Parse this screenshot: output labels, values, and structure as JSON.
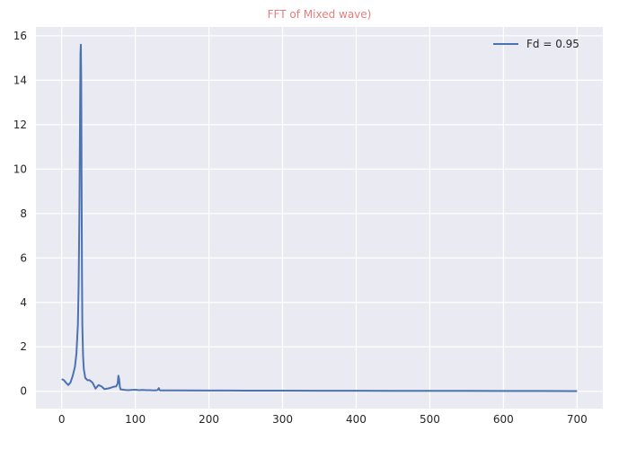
{
  "chart_data": {
    "type": "line",
    "title": "FFT of Mixed wave)",
    "title_color": "#e77c7c",
    "xlabel": "",
    "ylabel": "",
    "xlim": [
      -35,
      735
    ],
    "ylim": [
      -0.78,
      16.4
    ],
    "xticks": [
      0,
      100,
      200,
      300,
      400,
      500,
      600,
      700
    ],
    "yticks": [
      0,
      2,
      4,
      6,
      8,
      10,
      12,
      14,
      16
    ],
    "grid": true,
    "background": "#eaeaf2",
    "legend": {
      "placement": "top-right",
      "entries": [
        "Fd = 0.95"
      ]
    },
    "series": [
      {
        "name": "Fd = 0.95",
        "color": "#4c72b0",
        "x": [
          0,
          3,
          6,
          9,
          12,
          15,
          18,
          20,
          22,
          23,
          24,
          25,
          25.5,
          26,
          26.5,
          27,
          27.5,
          28,
          29,
          30,
          32,
          35,
          38,
          42,
          46,
          50,
          54,
          58,
          62,
          66,
          70,
          74,
          76,
          77,
          78,
          79,
          80,
          82,
          86,
          90,
          95,
          100,
          105,
          110,
          115,
          120,
          125,
          130,
          132,
          133,
          134,
          140,
          150,
          200,
          250,
          300,
          350,
          400,
          450,
          500,
          550,
          600,
          650,
          700
        ],
        "y": [
          0.55,
          0.5,
          0.38,
          0.28,
          0.4,
          0.7,
          1.1,
          1.7,
          3.0,
          4.8,
          8.0,
          12.8,
          15.2,
          15.6,
          14.0,
          9.5,
          5.5,
          3.0,
          1.6,
          1.0,
          0.6,
          0.5,
          0.5,
          0.38,
          0.12,
          0.28,
          0.22,
          0.1,
          0.12,
          0.15,
          0.2,
          0.22,
          0.35,
          0.7,
          0.55,
          0.2,
          0.08,
          0.08,
          0.06,
          0.05,
          0.06,
          0.07,
          0.05,
          0.06,
          0.05,
          0.05,
          0.04,
          0.05,
          0.14,
          0.05,
          0.04,
          0.04,
          0.04,
          0.035,
          0.03,
          0.028,
          0.025,
          0.022,
          0.02,
          0.018,
          0.016,
          0.014,
          0.012,
          0.01
        ]
      }
    ]
  }
}
